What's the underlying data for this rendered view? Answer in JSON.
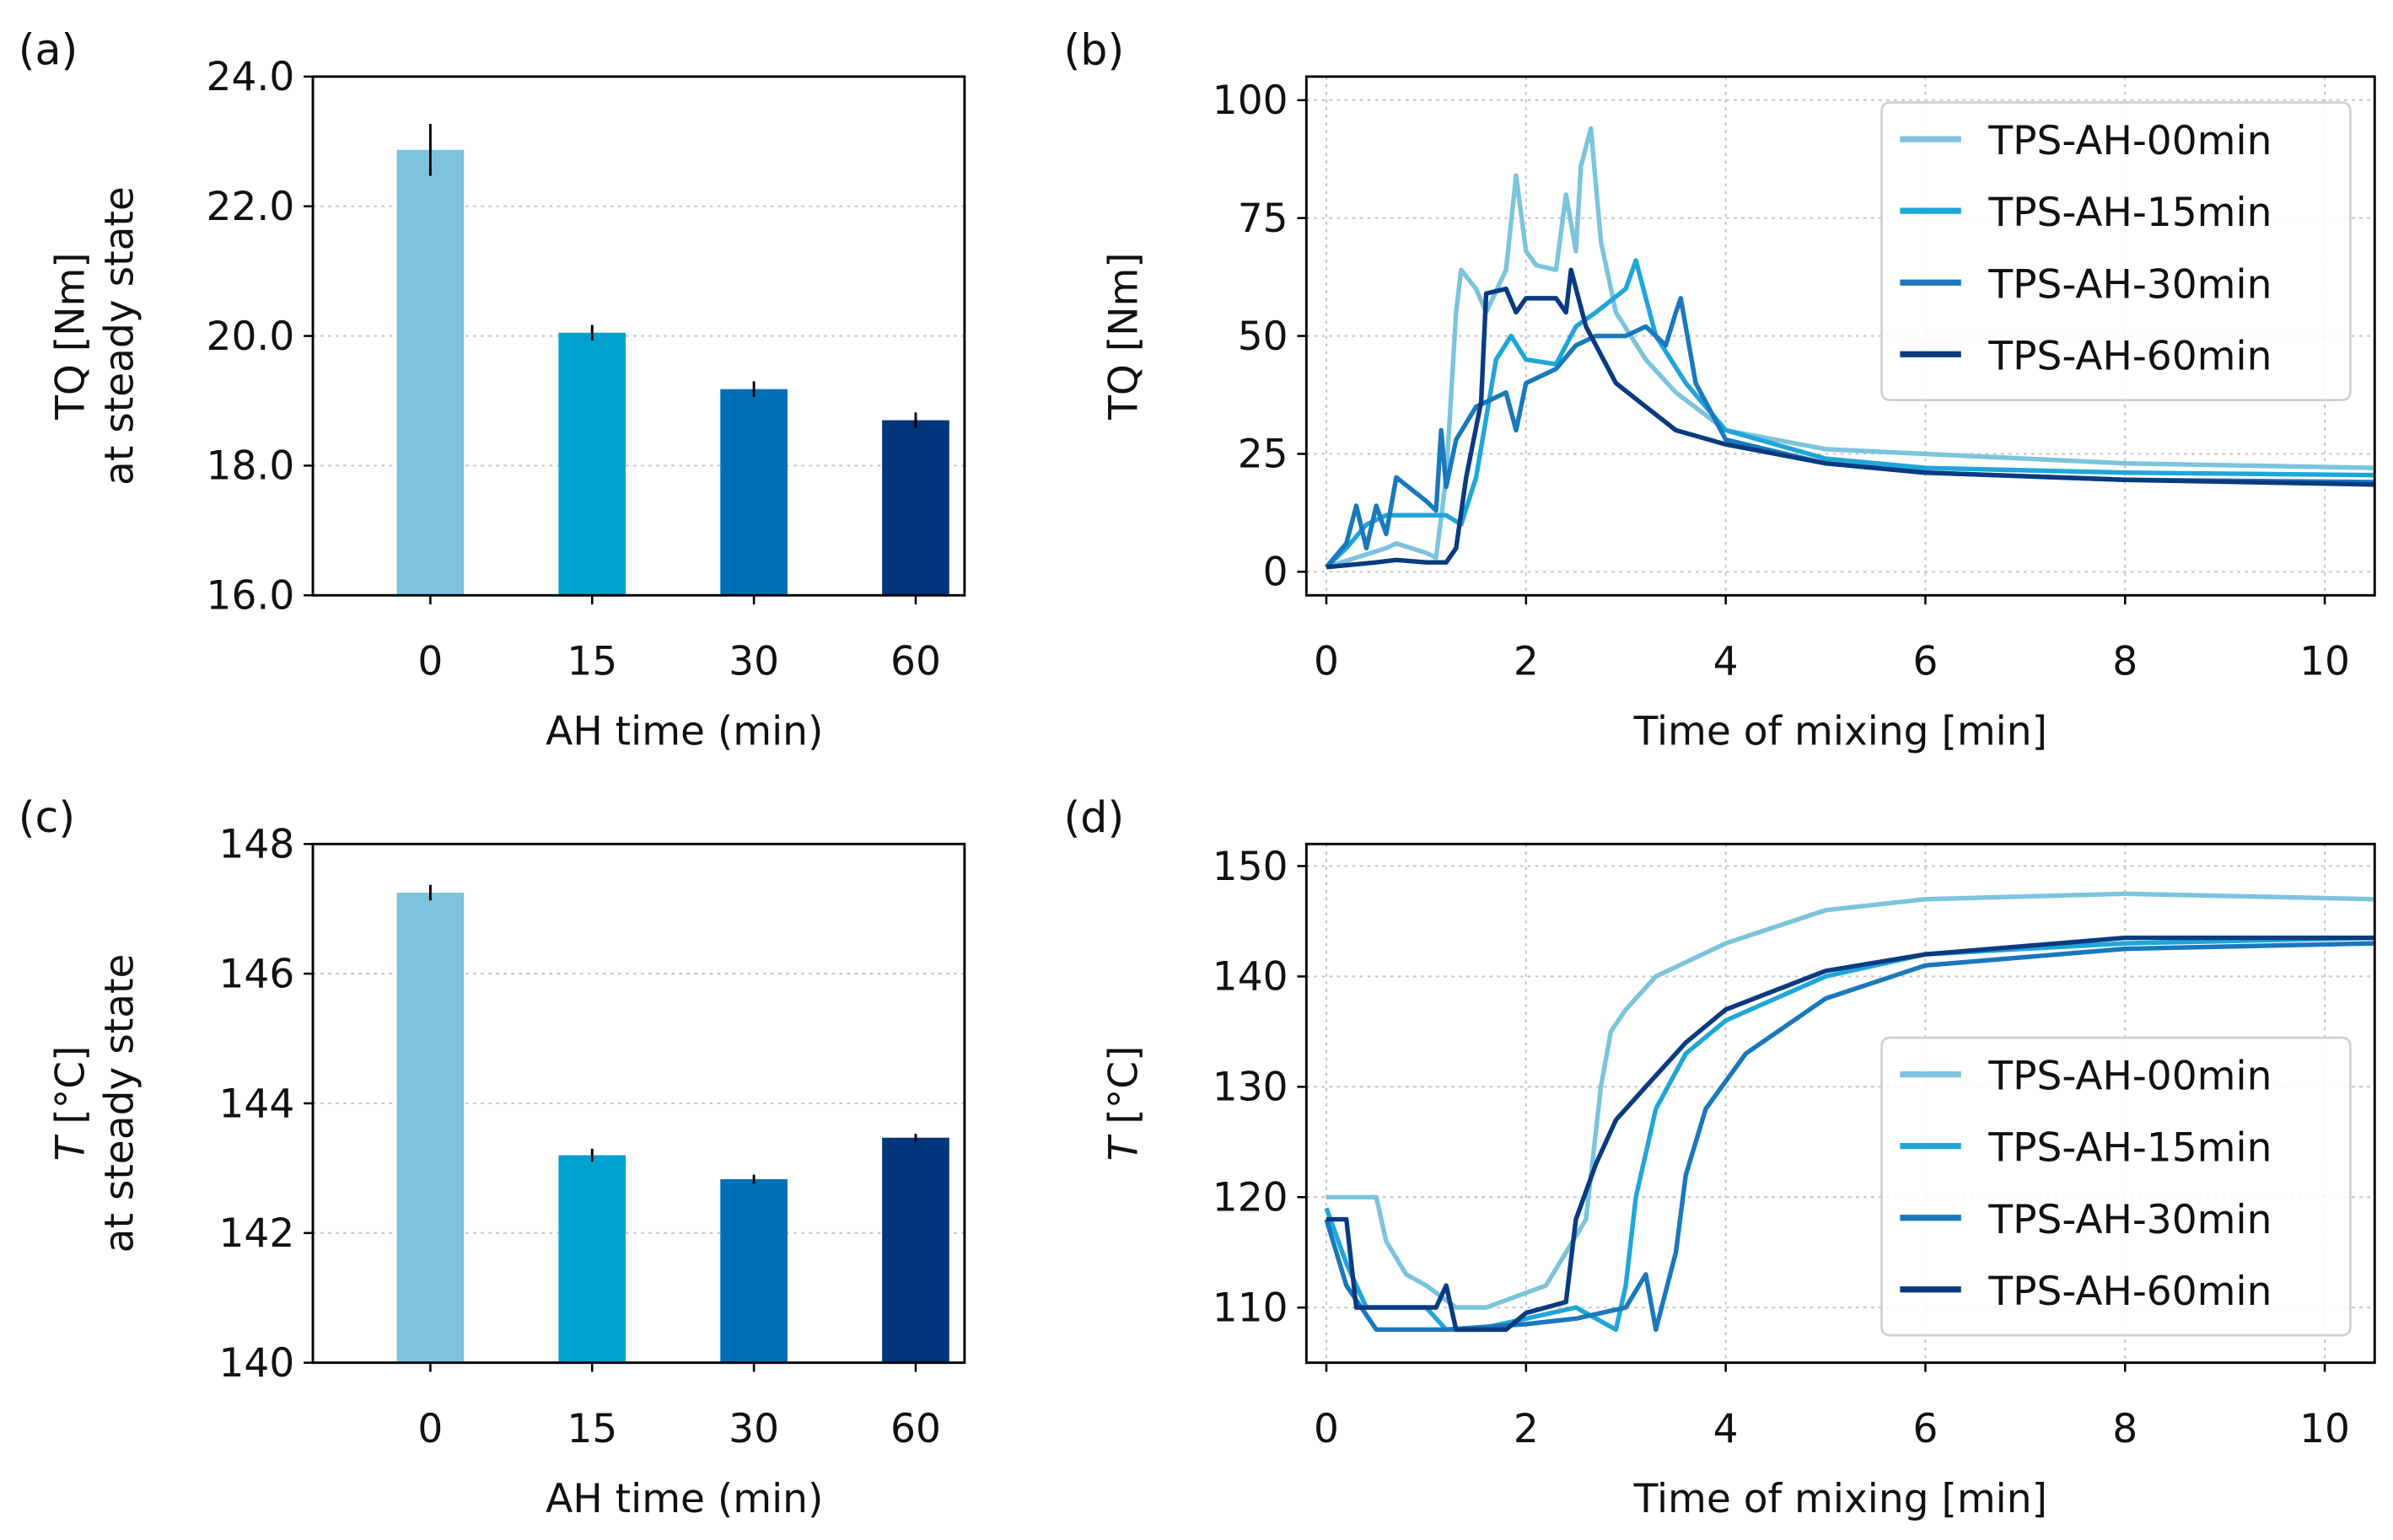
{
  "colors": [
    "#7cc3de",
    "#00a1d0",
    "#0070b6",
    "#00367c"
  ],
  "line_colors": [
    "#7cc3de",
    "#1fa6d8",
    "#1a78bd",
    "#0a3b80"
  ],
  "chart_data": [
    {
      "panel": "(a)",
      "type": "bar",
      "categories": [
        "0",
        "15",
        "30",
        "60"
      ],
      "values": [
        22.87,
        20.05,
        19.18,
        18.7
      ],
      "errors": [
        0.4,
        0.12,
        0.12,
        0.12
      ],
      "xlabel": "AH time (min)",
      "ylabel": [
        "TQ [Nm]",
        "at steady state"
      ],
      "ylim": [
        16,
        24
      ],
      "yticks": [
        16,
        18,
        20,
        22,
        24
      ],
      "ytick_labels": [
        "16.0",
        "18.0",
        "20.0",
        "22.0",
        "24.0"
      ],
      "grid": "y"
    },
    {
      "panel": "(b)",
      "type": "line",
      "xlabel": "Time of mixing [min]",
      "ylabel": "TQ [Nm]",
      "xlim": [
        -0.2,
        10.5
      ],
      "ylim": [
        -5,
        105
      ],
      "xticks": [
        0,
        2,
        4,
        6,
        8,
        10
      ],
      "yticks": [
        0,
        25,
        50,
        75,
        100
      ],
      "grid": "both",
      "legend": "top-right",
      "series": [
        {
          "name": "TPS-AH-00min",
          "x": [
            0,
            0.3,
            0.6,
            0.7,
            1.0,
            1.1,
            1.2,
            1.3,
            1.35,
            1.5,
            1.6,
            1.8,
            1.9,
            2.0,
            2.1,
            2.3,
            2.4,
            2.5,
            2.55,
            2.65,
            2.75,
            2.9,
            3.2,
            3.5,
            4,
            5,
            6,
            8,
            10.5
          ],
          "y": [
            1,
            3,
            5,
            6,
            4,
            3,
            20,
            55,
            64,
            60,
            55,
            64,
            84,
            68,
            65,
            64,
            80,
            68,
            86,
            94,
            70,
            55,
            45,
            38,
            30,
            26,
            25,
            23,
            22
          ]
        },
        {
          "name": "TPS-AH-15min",
          "x": [
            0,
            0.2,
            0.4,
            0.6,
            1.0,
            1.2,
            1.35,
            1.5,
            1.7,
            1.85,
            2.0,
            2.3,
            2.5,
            2.7,
            3.0,
            3.1,
            3.3,
            3.6,
            4,
            5,
            6,
            8,
            10.5
          ],
          "y": [
            1,
            5,
            10,
            12,
            12,
            12,
            10,
            20,
            45,
            50,
            45,
            44,
            52,
            55,
            60,
            66,
            50,
            40,
            30,
            24,
            22,
            21,
            20.5
          ]
        },
        {
          "name": "TPS-AH-30min",
          "x": [
            0,
            0.2,
            0.3,
            0.4,
            0.5,
            0.6,
            0.7,
            1.0,
            1.1,
            1.15,
            1.2,
            1.3,
            1.5,
            1.8,
            1.9,
            2.0,
            2.3,
            2.5,
            2.7,
            3.0,
            3.2,
            3.4,
            3.5,
            3.55,
            3.7,
            4,
            5,
            6,
            8,
            10.5
          ],
          "y": [
            1,
            6,
            14,
            5,
            14,
            8,
            20,
            15,
            13,
            30,
            18,
            28,
            35,
            38,
            30,
            40,
            43,
            48,
            50,
            50,
            52,
            48,
            55,
            58,
            40,
            28,
            23,
            21,
            19.5,
            19
          ]
        },
        {
          "name": "TPS-AH-60min",
          "x": [
            0,
            0.5,
            0.7,
            1.0,
            1.2,
            1.3,
            1.4,
            1.55,
            1.6,
            1.8,
            1.9,
            2.0,
            2.3,
            2.4,
            2.45,
            2.6,
            2.9,
            3.2,
            3.5,
            4,
            5,
            6,
            8,
            10.5
          ],
          "y": [
            1,
            2,
            2.5,
            2,
            2,
            5,
            20,
            36,
            59,
            60,
            55,
            58,
            58,
            55,
            64,
            52,
            40,
            35,
            30,
            27,
            23,
            21,
            19.5,
            18.5
          ]
        }
      ]
    },
    {
      "panel": "(c)",
      "type": "bar",
      "categories": [
        "0",
        "15",
        "30",
        "60"
      ],
      "values": [
        147.25,
        143.2,
        142.83,
        143.47
      ],
      "errors": [
        0.12,
        0.1,
        0.07,
        0.06
      ],
      "xlabel": "AH time (min)",
      "ylabel": [
        "T [°C]",
        "at steady state"
      ],
      "ylim": [
        140,
        148
      ],
      "yticks": [
        140,
        142,
        144,
        146,
        148
      ],
      "ytick_labels": [
        "140",
        "142",
        "144",
        "146",
        "148"
      ],
      "grid": "y"
    },
    {
      "panel": "(d)",
      "type": "line",
      "xlabel": "Time of mixing [min]",
      "ylabel": "T [°C]",
      "xlim": [
        -0.2,
        10.5
      ],
      "ylim": [
        105,
        152
      ],
      "xticks": [
        0,
        2,
        4,
        6,
        8,
        10
      ],
      "yticks": [
        110,
        120,
        130,
        140,
        150
      ],
      "grid": "both",
      "legend": "lower-right",
      "series": [
        {
          "name": "TPS-AH-00min",
          "x": [
            0,
            0.5,
            0.6,
            0.8,
            1.0,
            1.3,
            1.6,
            1.9,
            2.2,
            2.4,
            2.6,
            2.75,
            2.85,
            3.0,
            3.3,
            4,
            5,
            6,
            8,
            10.5
          ],
          "y": [
            120,
            120,
            116,
            113,
            112,
            110,
            110,
            111,
            112,
            115,
            118,
            130,
            135,
            137,
            140,
            143,
            146,
            147,
            147.5,
            147
          ]
        },
        {
          "name": "TPS-AH-15min",
          "x": [
            0,
            0.2,
            0.4,
            1.0,
            1.2,
            1.5,
            2,
            2.5,
            2.9,
            3.0,
            3.1,
            3.3,
            3.6,
            4,
            5,
            6,
            8,
            10.5
          ],
          "y": [
            119,
            114,
            110,
            110,
            108,
            108,
            109,
            110,
            108,
            112,
            120,
            128,
            133,
            136,
            140,
            142,
            143,
            143.5
          ]
        },
        {
          "name": "TPS-AH-30min",
          "x": [
            0,
            0.2,
            0.5,
            1.2,
            2,
            2.5,
            3.0,
            3.2,
            3.3,
            3.5,
            3.6,
            3.8,
            4.2,
            5,
            6,
            8,
            10.5
          ],
          "y": [
            118,
            112,
            108,
            108,
            108.5,
            109,
            110,
            113,
            108,
            115,
            122,
            128,
            133,
            138,
            141,
            142.5,
            143
          ]
        },
        {
          "name": "TPS-AH-60min",
          "x": [
            0,
            0.2,
            0.3,
            0.5,
            1.1,
            1.2,
            1.3,
            1.8,
            2.0,
            2.4,
            2.5,
            2.7,
            2.9,
            3.2,
            3.6,
            4,
            5,
            6,
            8,
            10.5
          ],
          "y": [
            118,
            118,
            110,
            110,
            110,
            112,
            108,
            108,
            109.5,
            110.5,
            118,
            123,
            127,
            130,
            134,
            137,
            140.5,
            142,
            143.5,
            143.5
          ]
        }
      ]
    }
  ]
}
